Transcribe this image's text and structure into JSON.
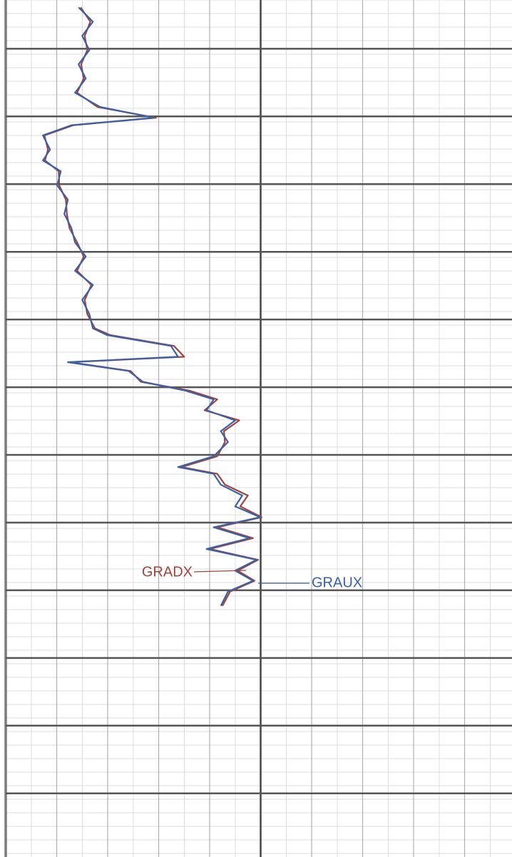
{
  "chart_data": {
    "type": "line",
    "orientation": "vertical",
    "x": [
      0.39,
      0.6,
      0.81,
      1.02,
      1.23,
      1.44,
      1.65,
      1.86,
      2.02,
      2.13,
      2.28,
      2.49,
      2.65,
      2.81,
      3.02,
      3.23,
      3.44,
      3.65,
      3.86,
      4.07,
      4.28,
      4.49,
      4.71,
      4.92,
      5.13,
      5.23,
      5.39,
      5.55,
      5.63,
      5.76,
      5.92,
      6.05,
      6.18,
      6.34,
      6.49,
      6.65,
      6.81,
      7.02,
      7.18,
      7.28,
      7.44,
      7.6,
      7.76,
      7.92,
      8.07,
      8.23,
      8.39,
      8.55,
      8.71,
      8.86,
      9.02,
      9.23
    ],
    "xlim": [
      0.28,
      12.94
    ],
    "xticks": [
      1,
      2,
      3,
      4,
      5,
      6,
      7,
      8,
      9,
      10,
      11,
      12
    ],
    "ylim": [
      0,
      9.93
    ],
    "yticks": [
      0,
      1,
      2,
      3,
      4,
      5,
      6,
      7,
      8,
      9
    ],
    "grid": true,
    "series": [
      {
        "name": "GRADX",
        "color": "#a0443c",
        "values": [
          1.47,
          1.66,
          1.55,
          1.6,
          1.48,
          1.53,
          1.4,
          1.8,
          2.95,
          1.33,
          0.76,
          0.83,
          0.77,
          1.04,
          1.05,
          1.18,
          1.2,
          1.25,
          1.4,
          1.53,
          1.4,
          1.68,
          1.55,
          1.6,
          1.75,
          2.05,
          3.3,
          3.5,
          1.26,
          2.45,
          2.65,
          3.6,
          4.15,
          3.9,
          4.58,
          4.28,
          4.3,
          4.15,
          3.45,
          4.15,
          4.3,
          4.75,
          4.6,
          5.02,
          4.15,
          4.85,
          4.0,
          4.95,
          4.55,
          4.88,
          4.4,
          4.25
        ]
      },
      {
        "name": "GRAUX",
        "color": "#3b5fa8",
        "values": [
          1.43,
          1.71,
          1.5,
          1.64,
          1.43,
          1.57,
          1.36,
          1.85,
          2.9,
          1.29,
          0.73,
          0.87,
          0.73,
          1.08,
          1.01,
          1.22,
          1.15,
          1.29,
          1.36,
          1.57,
          1.36,
          1.71,
          1.5,
          1.64,
          1.71,
          1.99,
          3.24,
          3.38,
          1.22,
          2.41,
          2.69,
          3.52,
          4.08,
          3.94,
          4.5,
          4.22,
          4.36,
          4.08,
          3.38,
          4.08,
          4.22,
          4.64,
          4.5,
          4.99,
          4.08,
          4.78,
          3.94,
          4.92,
          4.5,
          4.85,
          4.36,
          4.22
        ]
      }
    ]
  }
}
